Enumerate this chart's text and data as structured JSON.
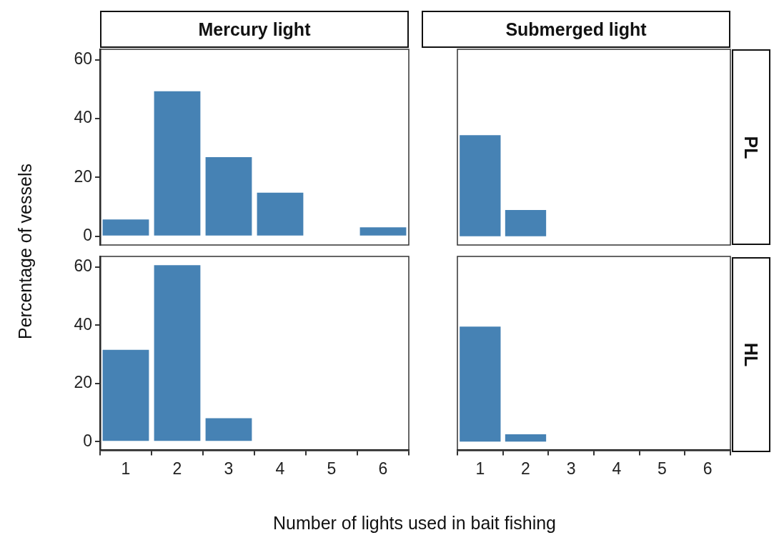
{
  "chart_data": [
    {
      "type": "bar",
      "title": "Mercury light",
      "ylabel": "Percentage of vessels",
      "categories": [
        "1",
        "2",
        "3",
        "4",
        "5",
        "6"
      ],
      "values": [
        5.7,
        49.3,
        26.9,
        14.8,
        null,
        3.0
      ],
      "color": "#4682b4",
      "ylim": [
        -3,
        63.6
      ],
      "yticks": [
        0,
        20,
        40,
        60
      ],
      "tick_labels": "y"
    },
    {
      "type": "bar",
      "title": "Submerged light",
      "y2label": "PL",
      "categories": [
        "1",
        "2",
        "3",
        "4",
        "5",
        "6"
      ],
      "values": [
        34.4,
        8.9,
        null,
        null,
        null,
        null
      ],
      "color": "#4682b4",
      "ylim": [
        -3,
        63.6
      ],
      "yticks": [
        0,
        20,
        40,
        60
      ],
      "tick_labels": false
    },
    {
      "type": "bar",
      "xlabel": "Number of lights used in bait fishing",
      "categories": [
        "1",
        "2",
        "3",
        "4",
        "5",
        "6"
      ],
      "values": [
        31.5,
        60.6,
        8.0,
        null,
        null,
        null
      ],
      "color": "#4682b4",
      "ylim": [
        -3,
        63.6
      ],
      "yticks": [
        0,
        20,
        40,
        60
      ]
    },
    {
      "type": "bar",
      "y2label": "HL",
      "categories": [
        "1",
        "2",
        "3",
        "4",
        "5",
        "6"
      ],
      "values": [
        39.5,
        2.5,
        null,
        null,
        null,
        null
      ],
      "color": "#4682b4",
      "ylim": [
        -3,
        63.6
      ],
      "yticks": [
        0,
        20,
        40,
        60
      ],
      "tick_labels": "x"
    }
  ]
}
